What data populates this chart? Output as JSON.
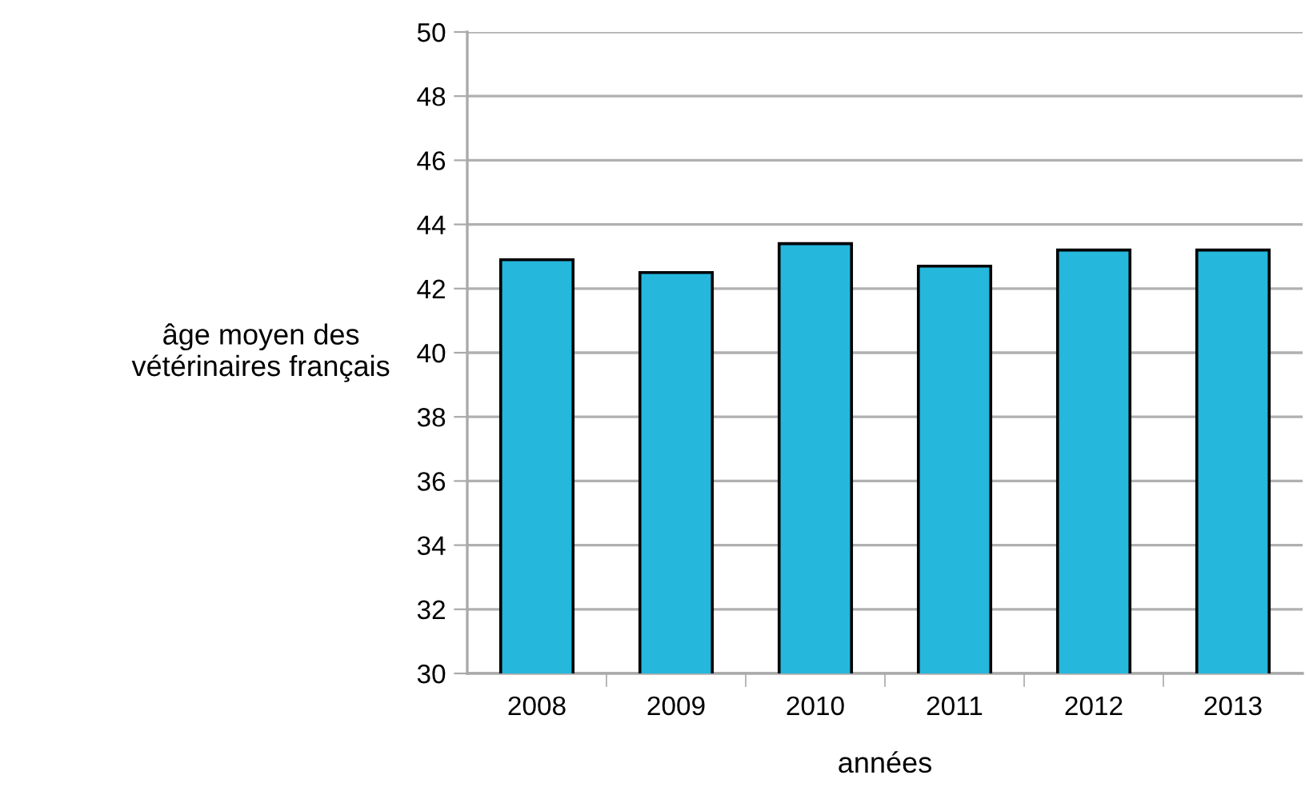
{
  "chart_data": {
    "type": "bar",
    "xlabel": "années",
    "ylabel": "âge moyen des\nvétérinaires français",
    "categories": [
      "2008",
      "2009",
      "2010",
      "2011",
      "2012",
      "2013"
    ],
    "values": [
      42.9,
      42.5,
      43.4,
      42.7,
      43.2,
      43.2
    ],
    "color": "#25b7dc",
    "ylim": [
      30,
      50
    ],
    "yticks": [
      30,
      32,
      34,
      36,
      38,
      40,
      42,
      44,
      46,
      48,
      50
    ],
    "grid": "y"
  }
}
